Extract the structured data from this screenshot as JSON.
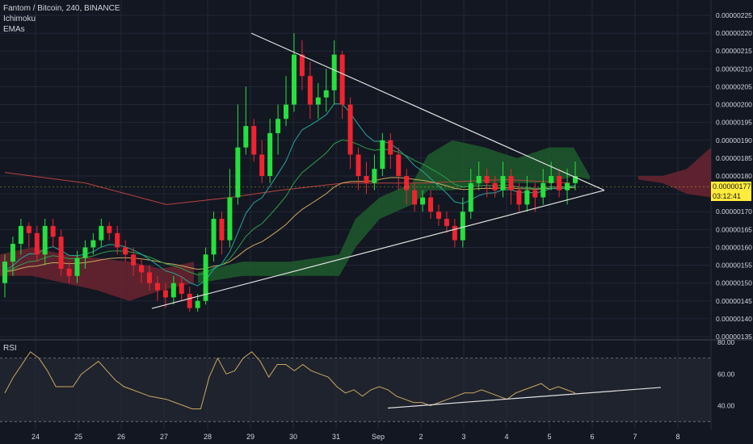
{
  "legend": {
    "symbol": "Fantom / Bitcoin, 240, BINANCE",
    "indicator1": "Ichimoku",
    "indicator2": "EMAs"
  },
  "rsi_label": "RSI",
  "price_tag": {
    "price": "0.00000177",
    "countdown": "03:12:41"
  },
  "colors": {
    "background": "#131722",
    "up": "#26e03d",
    "down": "#f0242f",
    "cloud_bull": "#1e5a2c",
    "cloud_bear": "#6b2430",
    "ema_long": "#b8433f",
    "ema_mid": "#c8a860",
    "ema_fast": "#26a69a",
    "ema_green": "#2e9e4a",
    "trend": "#e0e0e0",
    "rsi": "#c8a860",
    "price_tag_bg": "#ffeb3b"
  },
  "chart_data": [
    {
      "type": "candlestick",
      "title": "",
      "x_ticks": [
        "24",
        "25",
        "26",
        "27",
        "28",
        "29",
        "30",
        "31",
        "Sep",
        "2",
        "3",
        "4",
        "5",
        "6",
        "7",
        "8"
      ],
      "y_ticks": [
        "0.00000135",
        "0.00000140",
        "0.00000145",
        "0.00000150",
        "0.00000155",
        "0.00000160",
        "0.00000165",
        "0.00000170",
        "0.00000175",
        "0.00000180",
        "0.00000185",
        "0.00000190",
        "0.00000195",
        "0.00000200",
        "0.00000205",
        "0.00000210",
        "0.00000215",
        "0.00000220",
        "0.00000225"
      ],
      "ylim": [
        1.348e-06,
        2.263e-06
      ],
      "triangle_upper": [
        [
          "29",
          2.2e-06
        ],
        [
          "6",
          1.76e-06
        ]
      ],
      "triangle_lower": [
        [
          "26.6",
          1.43e-06
        ],
        [
          "6",
          1.76e-06
        ]
      ],
      "last_price": 1.77e-06
    },
    {
      "type": "line",
      "title": "",
      "series_name": "RSI",
      "y_ticks": [
        "40.00",
        "60.00",
        "80.00"
      ],
      "ylim": [
        25,
        80
      ],
      "bands": [
        30,
        70
      ],
      "values": [
        48,
        58,
        66,
        74,
        70,
        62,
        52,
        52,
        52,
        60,
        64,
        68,
        62,
        56,
        52,
        50,
        48,
        46,
        45,
        44,
        42,
        40,
        38,
        38,
        58,
        70,
        60,
        62,
        70,
        74,
        68,
        58,
        66,
        66,
        62,
        66,
        62,
        60,
        58,
        52,
        48,
        50,
        46,
        50,
        52,
        50,
        46,
        44,
        42,
        42,
        40,
        42,
        44,
        46,
        48,
        48,
        50,
        48,
        46,
        44,
        48,
        50,
        52,
        54,
        50,
        52,
        50,
        48
      ],
      "trendline": [
        [
          480,
          38.5
        ],
        [
          818,
          51.5
        ]
      ]
    }
  ]
}
